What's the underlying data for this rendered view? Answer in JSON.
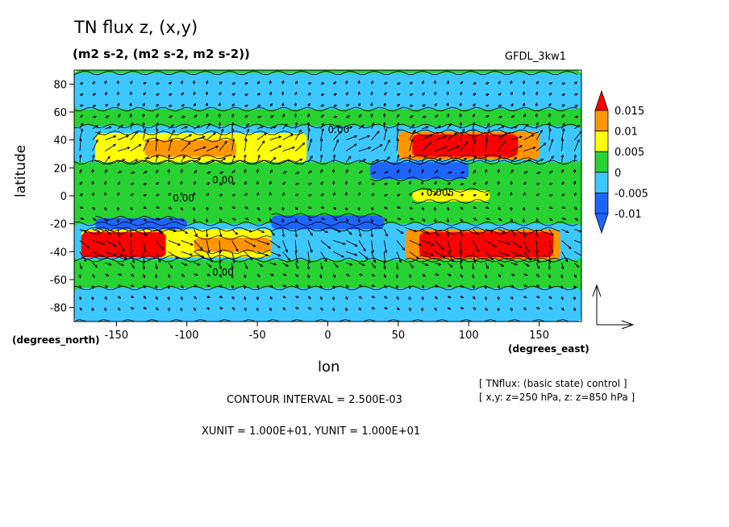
{
  "title": "TN flux z, (x,y)",
  "subtitle": "(m2 s-2, (m2 s-2, m2 s-2))",
  "model_label": "GFDL_3kw1",
  "footer": {
    "contour_interval": "CONTOUR INTERVAL = 2.500E-03",
    "units": "XUNIT = 1.000E+01, YUNIT = 1.000E+01",
    "info_line1": "[ TNflux: (basic state) control ]",
    "info_line2": "[ x,y: z=250 hPa, z: z=850 hPa ]"
  },
  "chart_data": {
    "type": "heatmap",
    "title": "TN flux z, (x,y)",
    "subtitle": "(m2 s-2, (m2 s-2, m2 s-2))",
    "xlabel": "lon",
    "ylabel": "latitude",
    "xunit_label": "(degrees_east)",
    "yunit_label": "(degrees_north)",
    "xlim": [
      -180,
      180
    ],
    "ylim": [
      -90,
      90
    ],
    "x_ticks": [
      -150,
      -100,
      -50,
      0,
      50,
      100,
      150
    ],
    "y_ticks": [
      -80,
      -60,
      -40,
      -20,
      0,
      20,
      40,
      60,
      80
    ],
    "grid": false,
    "colorbar": {
      "levels": [
        -0.01,
        -0.005,
        0,
        0.005,
        0.01,
        0.015
      ],
      "level_labels": [
        "-0.01",
        "-0.005",
        "0",
        "0.005",
        "0.01",
        "0.015"
      ],
      "colors": [
        "#1e64ff",
        "#3cc8ff",
        "#28d232",
        "#ffff00",
        "#ff9600",
        "#ff0000"
      ]
    },
    "contour_labels": [
      {
        "text": "0.00",
        "lon": 0,
        "lat": 45
      },
      {
        "text": "0.00",
        "lon": -110,
        "lat": -4
      },
      {
        "text": "0.005",
        "lon": 70,
        "lat": 0
      },
      {
        "text": "0.00",
        "lon": -82,
        "lat": 9
      },
      {
        "text": "0.00",
        "lon": -82,
        "lat": -57
      }
    ],
    "regions": [
      {
        "level": 0,
        "lon": [
          -180,
          180
        ],
        "lat": [
          -90,
          90
        ]
      },
      {
        "level": -0.005,
        "lon": [
          -180,
          180
        ],
        "lat": [
          62,
          88
        ]
      },
      {
        "level": -0.005,
        "lon": [
          -180,
          180
        ],
        "lat": [
          -90,
          -66
        ]
      },
      {
        "level": -0.005,
        "lon": [
          -180,
          180
        ],
        "lat": [
          24,
          50
        ]
      },
      {
        "level": -0.005,
        "lon": [
          -180,
          180
        ],
        "lat": [
          -46,
          -20
        ]
      },
      {
        "level": 0.005,
        "lon": [
          -165,
          -15
        ],
        "lat": [
          24,
          45
        ]
      },
      {
        "level": 0.01,
        "lon": [
          -130,
          -65
        ],
        "lat": [
          28,
          40
        ]
      },
      {
        "level": 0.005,
        "lon": [
          -175,
          -40
        ],
        "lat": [
          -44,
          -24
        ]
      },
      {
        "level": 0.015,
        "lon": [
          -175,
          -115
        ],
        "lat": [
          -44,
          -26
        ]
      },
      {
        "level": 0.01,
        "lon": [
          -95,
          -40
        ],
        "lat": [
          -40,
          -30
        ]
      },
      {
        "level": 0.01,
        "lon": [
          50,
          150
        ],
        "lat": [
          26,
          46
        ]
      },
      {
        "level": 0.015,
        "lon": [
          60,
          135
        ],
        "lat": [
          28,
          44
        ]
      },
      {
        "level": 0.01,
        "lon": [
          55,
          165
        ],
        "lat": [
          -46,
          -24
        ]
      },
      {
        "level": 0.015,
        "lon": [
          65,
          160
        ],
        "lat": [
          -44,
          -26
        ]
      },
      {
        "level": -0.01,
        "lon": [
          30,
          100
        ],
        "lat": [
          12,
          24
        ]
      },
      {
        "level": -0.01,
        "lon": [
          -40,
          40
        ],
        "lat": [
          -24,
          -14
        ]
      },
      {
        "level": -0.01,
        "lon": [
          -165,
          -100
        ],
        "lat": [
          -24,
          -16
        ]
      },
      {
        "level": 0.005,
        "lon": [
          60,
          115
        ],
        "lat": [
          -4,
          4
        ]
      }
    ]
  }
}
